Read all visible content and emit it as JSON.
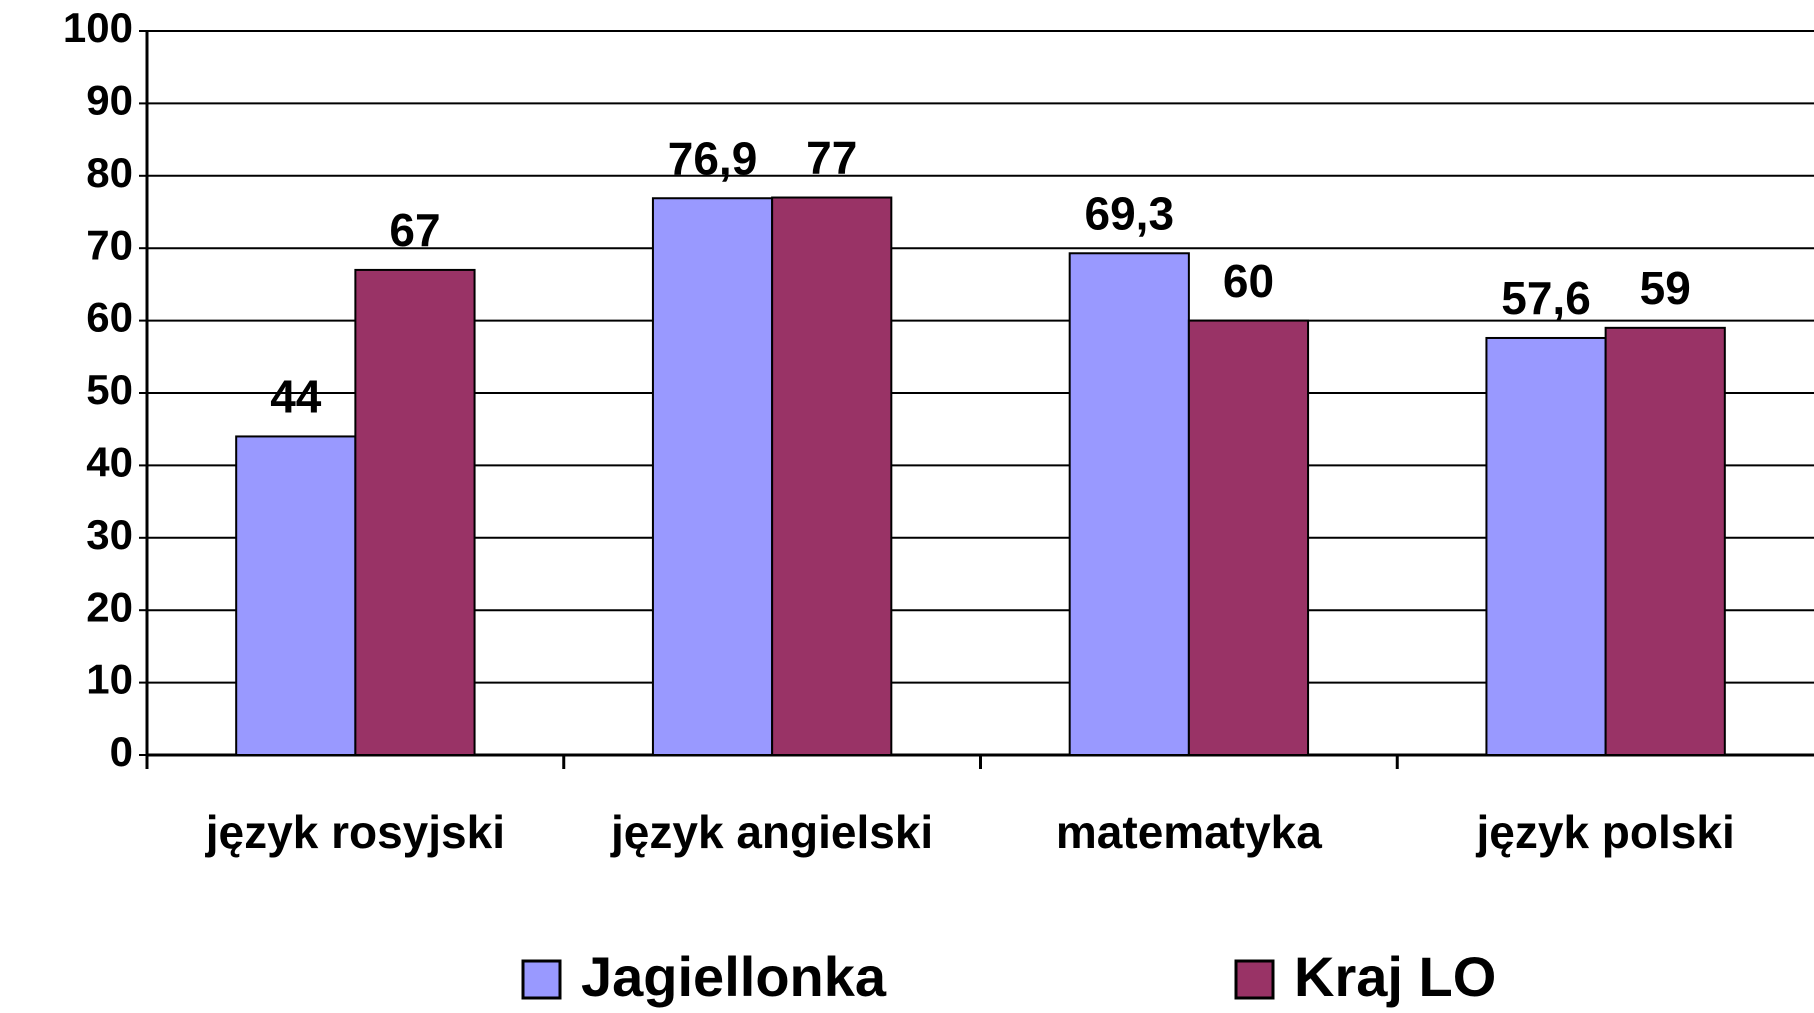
{
  "chart_data": {
    "type": "bar",
    "categories": [
      "język rosyjski",
      "język angielski",
      "matematyka",
      "język polski"
    ],
    "series": [
      {
        "name": "Jagiellonka",
        "color": "#9999ff",
        "values": [
          44,
          76.9,
          69.3,
          57.6
        ],
        "value_labels": [
          "44",
          "76,9",
          "69,3",
          "57,6"
        ]
      },
      {
        "name": "Kraj LO",
        "color": "#993366",
        "values": [
          67,
          77,
          60,
          59
        ]
      }
    ],
    "ylim": [
      0,
      100
    ],
    "yticks": [
      0,
      10,
      20,
      30,
      40,
      50,
      60,
      70,
      80,
      90,
      100
    ],
    "grid": true,
    "legend": "bottom"
  }
}
